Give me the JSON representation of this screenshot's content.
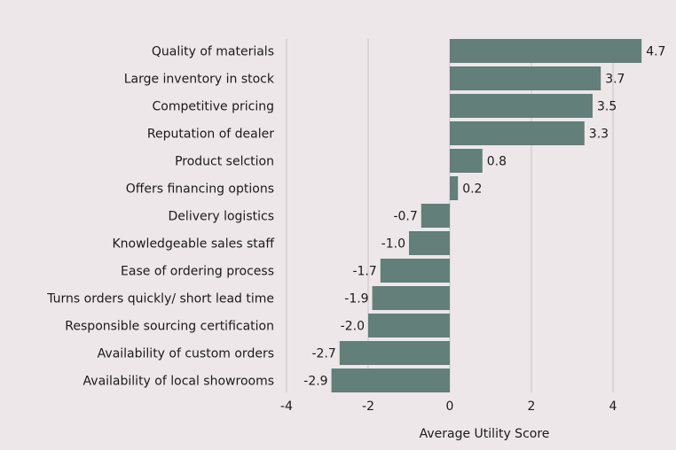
{
  "chart_data": {
    "type": "bar",
    "orientation": "horizontal",
    "title": "",
    "xlabel": "Average Utility Score",
    "ylabel": "",
    "xlim": [
      -4,
      5
    ],
    "xticks": [
      -4,
      -2,
      0,
      2,
      4
    ],
    "grid": "vertical",
    "bar_color": "#627f79",
    "background": "#ede7ea",
    "categories": [
      "Quality of materials",
      "Large inventory in stock",
      "Competitive pricing",
      "Reputation of dealer",
      "Product selction",
      "Offers financing options",
      "Delivery logistics",
      "Knowledgeable sales staff",
      "Ease of ordering process",
      "Turns orders quickly/ short lead time",
      "Responsible sourcing certification",
      "Availability of custom orders",
      "Availability of local showrooms"
    ],
    "values": [
      4.7,
      3.7,
      3.5,
      3.3,
      0.8,
      0.2,
      -0.7,
      -1.0,
      -1.7,
      -1.9,
      -2.0,
      -2.7,
      -2.9
    ],
    "value_labels": [
      "4.7",
      "3.7",
      "3.5",
      "3.3",
      "0.8",
      "0.2",
      "-0.7",
      "-1.0",
      "-1.7",
      "-1.9",
      "-2.0",
      "-2.7",
      "-2.9"
    ]
  }
}
